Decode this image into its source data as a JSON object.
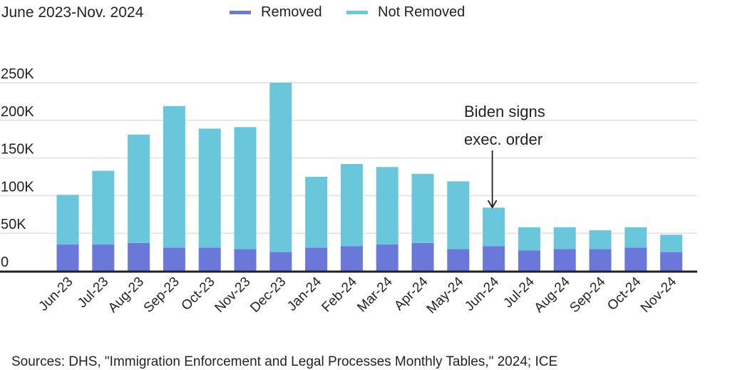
{
  "subtitle": "June 2023-Nov. 2024",
  "source": "Sources: DHS, \"Immigration Enforcement and Legal Processes Monthly Tables,\" 2024; ICE",
  "colors": {
    "removed": "#6a78d9",
    "not_removed": "#6ac6da",
    "grid": "#e6e6e6",
    "axis": "#222222"
  },
  "chart_data": {
    "type": "bar",
    "stacked": true,
    "title": "",
    "xlabel": "",
    "ylabel": "",
    "ylim": [
      0,
      250000
    ],
    "yticks": [
      0,
      50000,
      100000,
      150000,
      200000,
      250000
    ],
    "ytick_labels": [
      "0",
      "50K",
      "100K",
      "150K",
      "200K",
      "250K"
    ],
    "grid": true,
    "legend_placement": "top",
    "categories": [
      "Jun-23",
      "Jul-23",
      "Aug-23",
      "Sep-23",
      "Oct-23",
      "Nov-23",
      "Dec-23",
      "Jan-24",
      "Feb-24",
      "Mar-24",
      "Apr-24",
      "May-24",
      "Jun-24",
      "Jul-24",
      "Aug-24",
      "Sep-24",
      "Oct-24",
      "Nov-24"
    ],
    "series": [
      {
        "name": "Removed",
        "values": [
          35000,
          35000,
          37000,
          31000,
          31000,
          29000,
          25000,
          31000,
          33000,
          35000,
          37000,
          29000,
          33000,
          27000,
          29000,
          29000,
          31000,
          25000
        ]
      },
      {
        "name": "Not Removed",
        "values": [
          66000,
          98000,
          144000,
          188000,
          158000,
          162000,
          225000,
          94000,
          109000,
          103000,
          92000,
          90000,
          51000,
          31000,
          29000,
          25000,
          27000,
          23000
        ]
      }
    ],
    "annotations": [
      {
        "category": "Jun-24",
        "lines": [
          "Biden signs",
          "exec. order"
        ]
      }
    ]
  }
}
